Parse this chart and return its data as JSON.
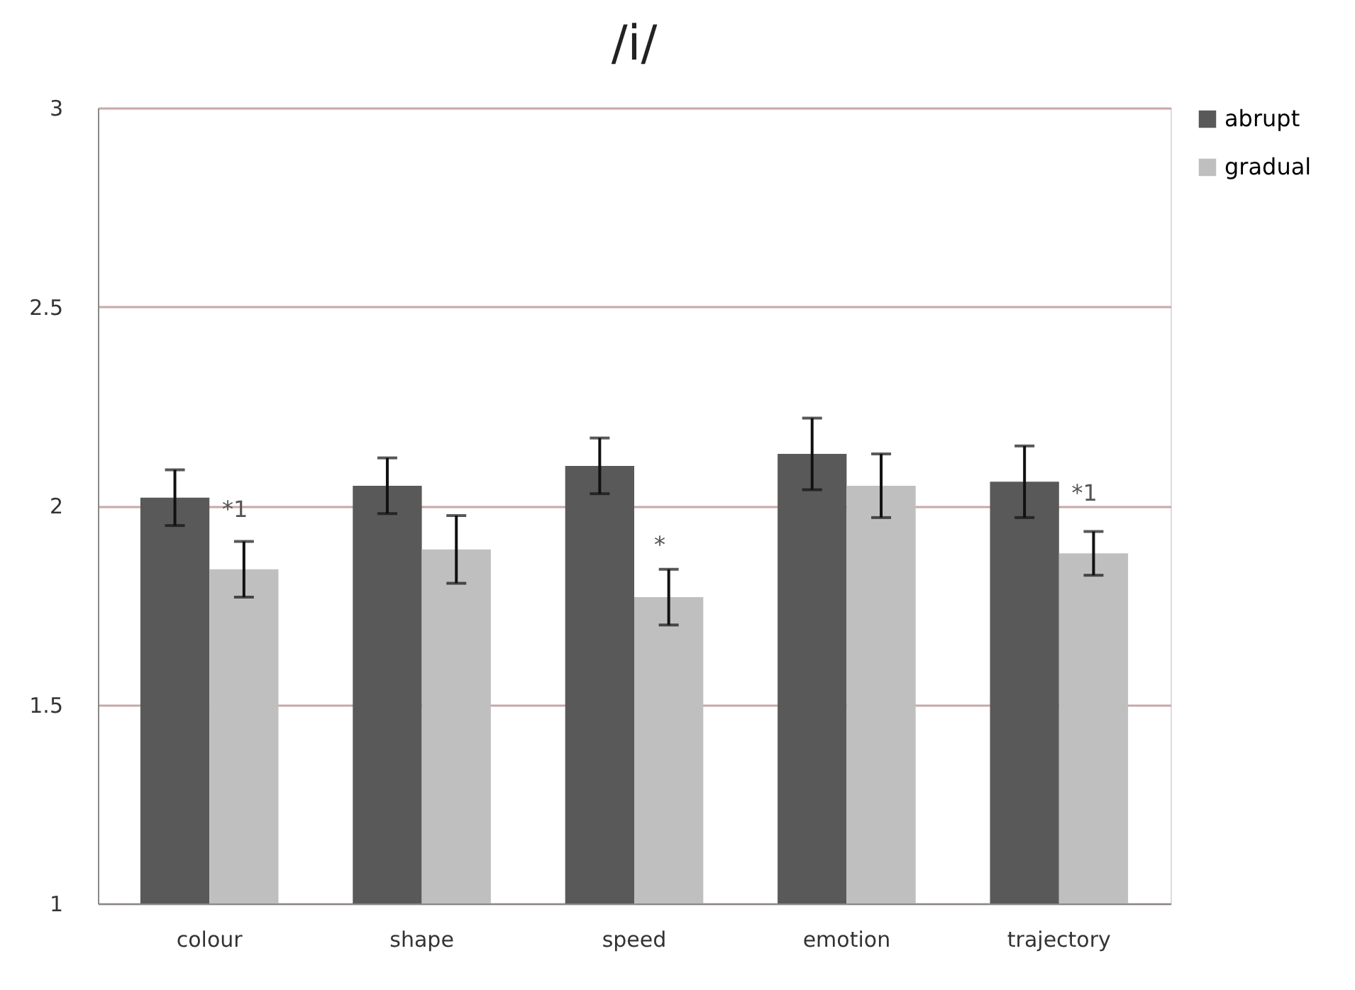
{
  "chart_data": {
    "type": "bar",
    "title": "/i/",
    "categories": [
      "colour",
      "shape",
      "speed",
      "emotion",
      "trajectory"
    ],
    "series": [
      {
        "name": "abrupt",
        "color": "#595959",
        "values": [
          2.02,
          2.05,
          2.1,
          2.13,
          2.06
        ],
        "errors": [
          0.07,
          0.07,
          0.07,
          0.09,
          0.09
        ]
      },
      {
        "name": "gradual",
        "color": "#bfbfbf",
        "values": [
          1.84,
          1.89,
          1.77,
          2.05,
          1.88
        ],
        "errors": [
          0.07,
          0.085,
          0.07,
          0.08,
          0.055
        ]
      }
    ],
    "ylim": [
      1,
      3
    ],
    "yticks": [
      1,
      1.5,
      2,
      2.5,
      3
    ],
    "grid": "y",
    "legend": "right",
    "annotations": [
      {
        "text": "*1",
        "x": "colour",
        "y": 1.99
      },
      {
        "text": "*",
        "x": "speed",
        "y": 1.9
      },
      {
        "text": "*1",
        "x": "trajectory",
        "y": 2.03
      }
    ]
  }
}
